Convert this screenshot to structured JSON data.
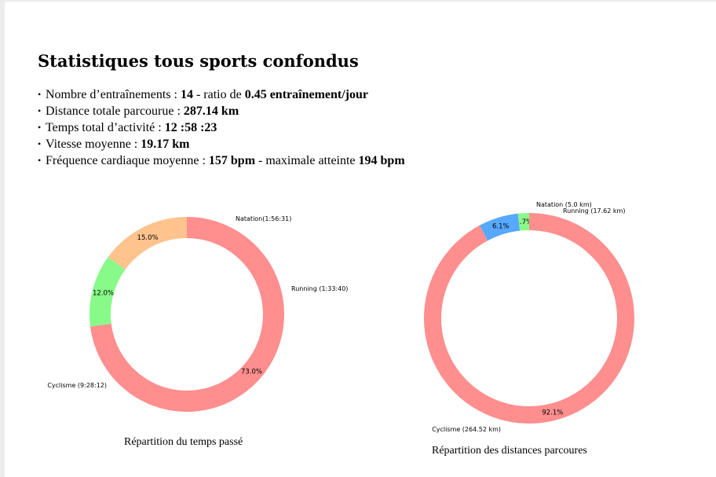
{
  "title": "Statistiques tous sports confondus",
  "stats": [
    {
      "parts": [
        {
          "text": "Nombre d’entraînements : ",
          "bold": false
        },
        {
          "text": "14",
          "bold": true
        },
        {
          "text": " - ratio de ",
          "bold": false
        },
        {
          "text": "0.45 entraînement/jour",
          "bold": true
        }
      ]
    },
    {
      "parts": [
        {
          "text": "Distance totale parcourue : ",
          "bold": false
        },
        {
          "text": "287.14 km",
          "bold": true
        }
      ]
    },
    {
      "parts": [
        {
          "text": "Temps total d’activité : ",
          "bold": false
        },
        {
          "text": "12 :58 :23",
          "bold": true
        }
      ]
    },
    {
      "parts": [
        {
          "text": "Vitesse moyenne : ",
          "bold": false
        },
        {
          "text": "19.17 km",
          "bold": true
        }
      ]
    },
    {
      "parts": [
        {
          "text": "Fréquence cardiaque moyenne : ",
          "bold": false
        },
        {
          "text": "157 bpm",
          "bold": true
        },
        {
          "text": " - maximale atteinte ",
          "bold": false
        },
        {
          "text": "194 bpm",
          "bold": true
        }
      ]
    }
  ],
  "chart_data": [
    {
      "type": "pie",
      "variant": "donut",
      "title": "Répartition du temps passé",
      "start_angle_deg": 90,
      "direction": "counterclockwise",
      "slices": [
        {
          "label": "Natation(1:56:31)",
          "value": 15.0,
          "pct_label": "15.0%",
          "color": "#ffc38e"
        },
        {
          "label": "Running (1:33:40)",
          "value": 12.0,
          "pct_label": "12.0%",
          "color": "#88fa89"
        },
        {
          "label": "Cyclisme (9:28:12)",
          "value": 73.0,
          "pct_label": "73.0%",
          "color": "#ff8e8e"
        }
      ]
    },
    {
      "type": "pie",
      "variant": "donut",
      "title": "Répartition des distances parcoures",
      "start_angle_deg": 90,
      "direction": "counterclockwise",
      "slices": [
        {
          "label": "Natation (5.0 km)",
          "value": 1.7,
          "pct_label": "1.7%",
          "color": "#88fa89"
        },
        {
          "label": "Running (17.62 km)",
          "value": 6.1,
          "pct_label": "6.1%",
          "color": "#57a8ff"
        },
        {
          "label": "Cyclisme (264.52 km)",
          "value": 92.1,
          "pct_label": "92.1%",
          "color": "#ff8e8e"
        }
      ]
    }
  ]
}
